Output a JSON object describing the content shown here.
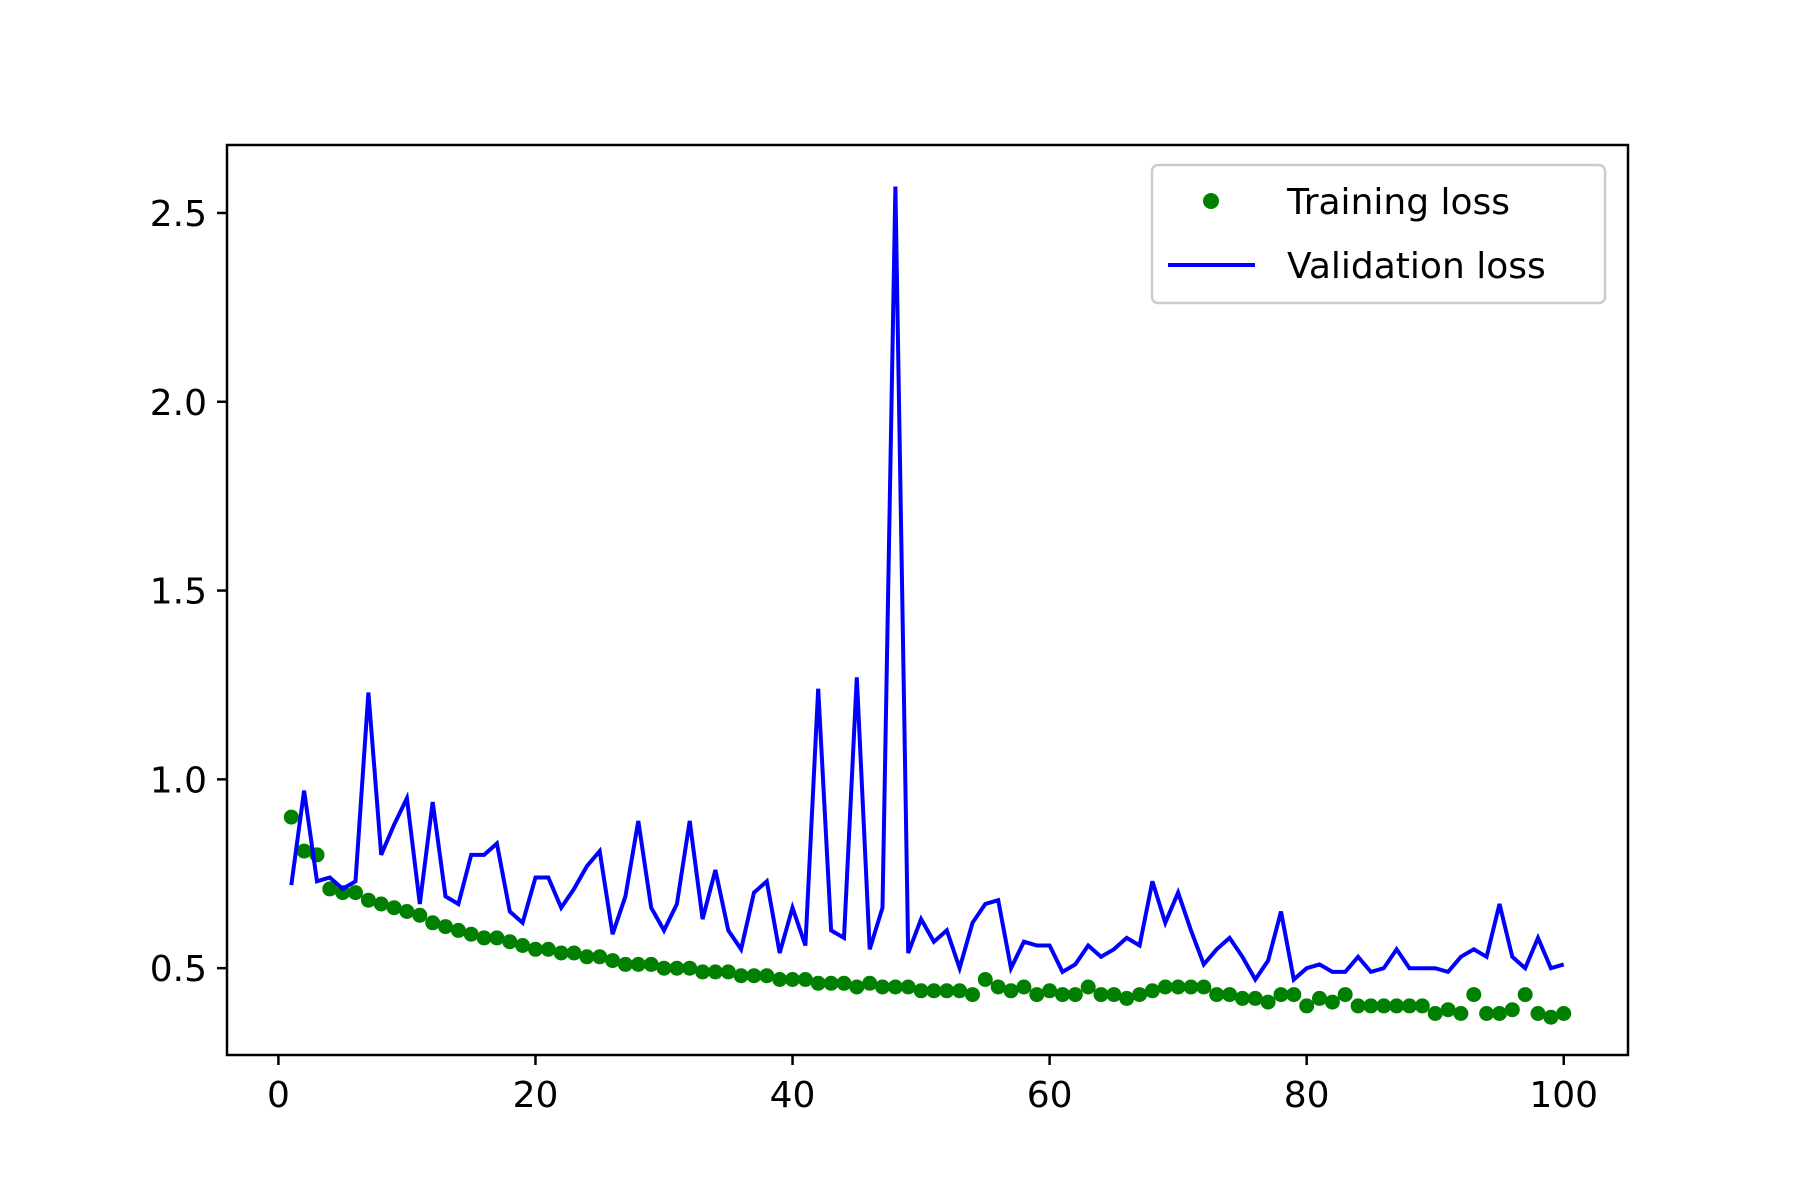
{
  "chart_data": {
    "type": "line",
    "title": "",
    "xlabel": "",
    "ylabel": "",
    "xlim": [
      -4,
      105
    ],
    "ylim": [
      0.27,
      2.68
    ],
    "xticks": [
      0,
      20,
      40,
      60,
      80,
      100
    ],
    "xtick_labels": [
      "0",
      "20",
      "40",
      "60",
      "80",
      "100"
    ],
    "yticks": [
      0.5,
      1.0,
      1.5,
      2.0,
      2.5
    ],
    "ytick_labels": [
      "0.5",
      "1.0",
      "1.5",
      "2.0",
      "2.5"
    ],
    "grid": false,
    "legend_position": "top-right",
    "x": [
      1,
      2,
      3,
      4,
      5,
      6,
      7,
      8,
      9,
      10,
      11,
      12,
      13,
      14,
      15,
      16,
      17,
      18,
      19,
      20,
      21,
      22,
      23,
      24,
      25,
      26,
      27,
      28,
      29,
      30,
      31,
      32,
      33,
      34,
      35,
      36,
      37,
      38,
      39,
      40,
      41,
      42,
      43,
      44,
      45,
      46,
      47,
      48,
      49,
      50,
      51,
      52,
      53,
      54,
      55,
      56,
      57,
      58,
      59,
      60,
      61,
      62,
      63,
      64,
      65,
      66,
      67,
      68,
      69,
      70,
      71,
      72,
      73,
      74,
      75,
      76,
      77,
      78,
      79,
      80,
      81,
      82,
      83,
      84,
      85,
      86,
      87,
      88,
      89,
      90,
      91,
      92,
      93,
      94,
      95,
      96,
      97,
      98,
      99,
      100
    ],
    "series": [
      {
        "name": "Training loss",
        "style": "dots",
        "color": "#008000",
        "values": [
          0.9,
          0.81,
          0.8,
          0.71,
          0.7,
          0.7,
          0.68,
          0.67,
          0.66,
          0.65,
          0.64,
          0.62,
          0.61,
          0.6,
          0.59,
          0.58,
          0.58,
          0.57,
          0.56,
          0.55,
          0.55,
          0.54,
          0.54,
          0.53,
          0.53,
          0.52,
          0.51,
          0.51,
          0.51,
          0.5,
          0.5,
          0.5,
          0.49,
          0.49,
          0.49,
          0.48,
          0.48,
          0.48,
          0.47,
          0.47,
          0.47,
          0.46,
          0.46,
          0.46,
          0.45,
          0.46,
          0.45,
          0.45,
          0.45,
          0.44,
          0.44,
          0.44,
          0.44,
          0.43,
          0.47,
          0.45,
          0.44,
          0.45,
          0.43,
          0.44,
          0.43,
          0.43,
          0.45,
          0.43,
          0.43,
          0.42,
          0.43,
          0.44,
          0.45,
          0.45,
          0.45,
          0.45,
          0.43,
          0.43,
          0.42,
          0.42,
          0.41,
          0.43,
          0.43,
          0.4,
          0.42,
          0.41,
          0.43,
          0.4,
          0.4,
          0.4,
          0.4,
          0.4,
          0.4,
          0.38,
          0.39,
          0.38,
          0.43,
          0.38,
          0.38,
          0.39,
          0.43,
          0.38,
          0.37,
          0.38
        ]
      },
      {
        "name": "Validation loss",
        "style": "line",
        "color": "#0000ff",
        "values": [
          0.72,
          0.97,
          0.73,
          0.74,
          0.71,
          0.73,
          1.23,
          0.8,
          0.88,
          0.95,
          0.67,
          0.94,
          0.69,
          0.67,
          0.8,
          0.8,
          0.83,
          0.65,
          0.62,
          0.74,
          0.74,
          0.66,
          0.71,
          0.77,
          0.81,
          0.59,
          0.69,
          0.89,
          0.66,
          0.6,
          0.67,
          0.89,
          0.63,
          0.76,
          0.6,
          0.55,
          0.7,
          0.73,
          0.54,
          0.66,
          0.56,
          1.24,
          0.6,
          0.58,
          1.27,
          0.55,
          0.66,
          2.57,
          0.54,
          0.63,
          0.57,
          0.6,
          0.5,
          0.62,
          0.67,
          0.68,
          0.5,
          0.57,
          0.56,
          0.56,
          0.49,
          0.51,
          0.56,
          0.53,
          0.55,
          0.58,
          0.56,
          0.73,
          0.62,
          0.7,
          0.6,
          0.51,
          0.55,
          0.58,
          0.53,
          0.47,
          0.52,
          0.65,
          0.47,
          0.5,
          0.51,
          0.49,
          0.49,
          0.53,
          0.49,
          0.5,
          0.55,
          0.5,
          0.5,
          0.5,
          0.49,
          0.53,
          0.55,
          0.53,
          0.67,
          0.53,
          0.5,
          0.58,
          0.5,
          0.51
        ]
      }
    ]
  }
}
